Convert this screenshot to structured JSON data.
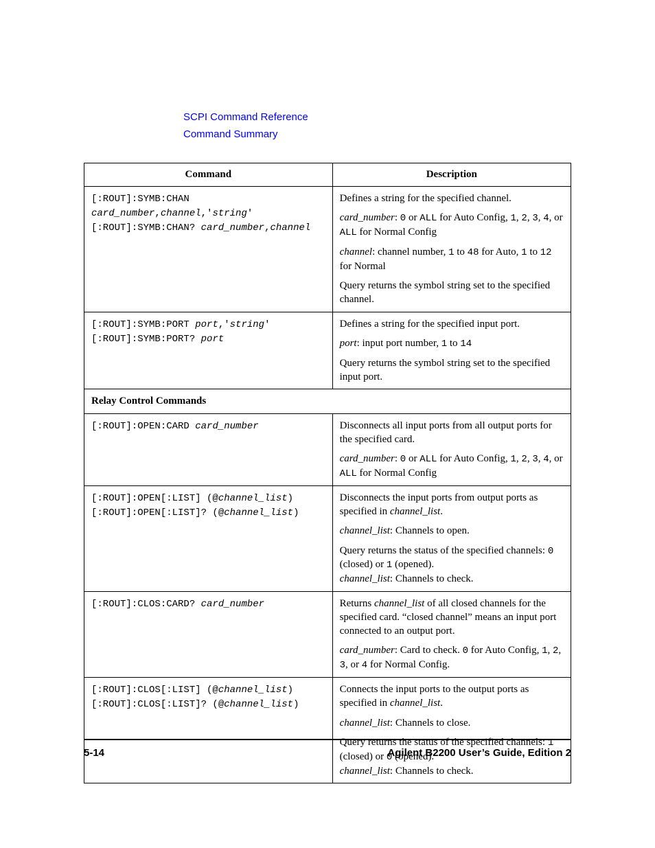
{
  "header": {
    "line1": "SCPI Command Reference",
    "line2": "Command Summary",
    "link_color": "#0000ff"
  },
  "table": {
    "col_command": "Command",
    "col_description": "Description",
    "rows": [
      {
        "type": "row",
        "command": [
          {
            "segments": [
              {
                "t": "[:ROUT]:SYMB:CHAN ",
                "cls": "mono"
              },
              {
                "t": "card_number",
                "cls": "mono ital"
              },
              {
                "t": ",",
                "cls": "mono"
              },
              {
                "t": "channel",
                "cls": "mono ital"
              },
              {
                "t": ",'",
                "cls": "mono"
              },
              {
                "t": "string",
                "cls": "mono ital"
              },
              {
                "t": "'",
                "cls": "mono"
              }
            ]
          },
          {
            "segments": [
              {
                "t": "[:ROUT]:SYMB:CHAN? ",
                "cls": "mono"
              },
              {
                "t": "card_number",
                "cls": "mono ital"
              },
              {
                "t": ",",
                "cls": "mono"
              },
              {
                "t": "channel",
                "cls": "mono ital"
              }
            ]
          }
        ],
        "description": [
          {
            "segments": [
              {
                "t": "Defines a string for the specified channel."
              }
            ]
          },
          {
            "segments": [
              {
                "t": "card_number",
                "cls": "ital"
              },
              {
                "t": ": "
              },
              {
                "t": "0",
                "cls": "mono"
              },
              {
                "t": " or "
              },
              {
                "t": "ALL",
                "cls": "mono"
              },
              {
                "t": " for Auto Config, "
              },
              {
                "t": "1",
                "cls": "mono"
              },
              {
                "t": ", "
              },
              {
                "t": "2",
                "cls": "mono"
              },
              {
                "t": ", "
              },
              {
                "t": "3",
                "cls": "mono"
              },
              {
                "t": ", "
              },
              {
                "t": "4",
                "cls": "mono"
              },
              {
                "t": ", or "
              },
              {
                "t": "ALL",
                "cls": "mono"
              },
              {
                "t": " for Normal Config"
              }
            ]
          },
          {
            "segments": [
              {
                "t": "channel",
                "cls": "ital"
              },
              {
                "t": ": channel number, "
              },
              {
                "t": "1",
                "cls": "mono"
              },
              {
                "t": " to "
              },
              {
                "t": "48",
                "cls": "mono"
              },
              {
                "t": " for Auto, "
              },
              {
                "t": "1",
                "cls": "mono"
              },
              {
                "t": " to "
              },
              {
                "t": "12",
                "cls": "mono"
              },
              {
                "t": " for Normal"
              }
            ]
          },
          {
            "segments": [
              {
                "t": "Query returns the symbol string set to the specified channel."
              }
            ]
          }
        ]
      },
      {
        "type": "row",
        "command": [
          {
            "segments": [
              {
                "t": "[:ROUT]:SYMB:PORT ",
                "cls": "mono"
              },
              {
                "t": "port",
                "cls": "mono ital"
              },
              {
                "t": ",'",
                "cls": "mono"
              },
              {
                "t": "string",
                "cls": "mono ital"
              },
              {
                "t": "'",
                "cls": "mono"
              }
            ]
          },
          {
            "segments": [
              {
                "t": "[:ROUT]:SYMB:PORT? ",
                "cls": "mono"
              },
              {
                "t": "port",
                "cls": "mono ital"
              }
            ]
          }
        ],
        "description": [
          {
            "segments": [
              {
                "t": "Defines a string for the specified input port."
              }
            ]
          },
          {
            "segments": [
              {
                "t": "port",
                "cls": "ital"
              },
              {
                "t": ": input port number, "
              },
              {
                "t": "1",
                "cls": "mono"
              },
              {
                "t": " to "
              },
              {
                "t": "14",
                "cls": "mono"
              }
            ]
          },
          {
            "segments": [
              {
                "t": "Query returns the symbol string set to the specified input port."
              }
            ]
          }
        ]
      },
      {
        "type": "section",
        "label": "Relay Control Commands"
      },
      {
        "type": "row",
        "command": [
          {
            "segments": [
              {
                "t": "[:ROUT]:OPEN:CARD ",
                "cls": "mono"
              },
              {
                "t": "card_number",
                "cls": "mono ital"
              }
            ]
          }
        ],
        "description": [
          {
            "segments": [
              {
                "t": "Disconnects all input ports from all output ports for the specified card."
              }
            ]
          },
          {
            "segments": [
              {
                "t": "card_number",
                "cls": "ital"
              },
              {
                "t": ": "
              },
              {
                "t": "0",
                "cls": "mono"
              },
              {
                "t": " or "
              },
              {
                "t": "ALL",
                "cls": "mono"
              },
              {
                "t": " for Auto Config, "
              },
              {
                "t": "1",
                "cls": "mono"
              },
              {
                "t": ", "
              },
              {
                "t": "2",
                "cls": "mono"
              },
              {
                "t": ", "
              },
              {
                "t": "3",
                "cls": "mono"
              },
              {
                "t": ", "
              },
              {
                "t": "4",
                "cls": "mono"
              },
              {
                "t": ", or "
              },
              {
                "t": "ALL",
                "cls": "mono"
              },
              {
                "t": " for Normal Config"
              }
            ]
          }
        ]
      },
      {
        "type": "row",
        "command": [
          {
            "segments": [
              {
                "t": "[:ROUT]:OPEN[:LIST] (@",
                "cls": "mono"
              },
              {
                "t": "channel_list",
                "cls": "mono ital"
              },
              {
                "t": ")",
                "cls": "mono"
              }
            ]
          },
          {
            "segments": [
              {
                "t": "[:ROUT]:OPEN[:LIST]? (@",
                "cls": "mono"
              },
              {
                "t": "channel_list",
                "cls": "mono ital"
              },
              {
                "t": ")",
                "cls": "mono"
              }
            ]
          }
        ],
        "description": [
          {
            "segments": [
              {
                "t": "Disconnects the input ports from output ports as specified in "
              },
              {
                "t": "channel_list",
                "cls": "ital"
              },
              {
                "t": "."
              }
            ]
          },
          {
            "segments": [
              {
                "t": "channel_list",
                "cls": "ital"
              },
              {
                "t": ": Channels to open."
              }
            ]
          },
          {
            "segments": [
              {
                "t": "Query returns the status of the specified channels: "
              },
              {
                "t": "0",
                "cls": "mono"
              },
              {
                "t": " (closed) or "
              },
              {
                "t": "1",
                "cls": "mono"
              },
              {
                "t": " (opened)."
              }
            ],
            "tight_next": true
          },
          {
            "segments": [
              {
                "t": "channel_list",
                "cls": "ital"
              },
              {
                "t": ": Channels to check."
              }
            ]
          }
        ]
      },
      {
        "type": "row",
        "command": [
          {
            "segments": [
              {
                "t": "[:ROUT]:CLOS:CARD? ",
                "cls": "mono"
              },
              {
                "t": "card_number",
                "cls": "mono ital"
              }
            ]
          }
        ],
        "description": [
          {
            "segments": [
              {
                "t": "Returns "
              },
              {
                "t": "channel_list",
                "cls": "ital"
              },
              {
                "t": " of all closed channels for the specified card. “closed channel” means an input port connected to an output port."
              }
            ]
          },
          {
            "segments": [
              {
                "t": "card_number",
                "cls": "ital"
              },
              {
                "t": ": Card to check. "
              },
              {
                "t": "0",
                "cls": "mono"
              },
              {
                "t": " for Auto Config, "
              },
              {
                "t": "1",
                "cls": "mono"
              },
              {
                "t": ", "
              },
              {
                "t": "2",
                "cls": "mono"
              },
              {
                "t": ", "
              },
              {
                "t": "3",
                "cls": "mono"
              },
              {
                "t": ", or "
              },
              {
                "t": "4",
                "cls": "mono"
              },
              {
                "t": " for Normal Config."
              }
            ]
          }
        ]
      },
      {
        "type": "row",
        "command": [
          {
            "segments": [
              {
                "t": "[:ROUT]:CLOS[:LIST] (@",
                "cls": "mono"
              },
              {
                "t": "channel_list",
                "cls": "mono ital"
              },
              {
                "t": ")",
                "cls": "mono"
              }
            ]
          },
          {
            "segments": [
              {
                "t": "[:ROUT]:CLOS[:LIST]? (@",
                "cls": "mono"
              },
              {
                "t": "channel_list",
                "cls": "mono ital"
              },
              {
                "t": ")",
                "cls": "mono"
              }
            ]
          }
        ],
        "description": [
          {
            "segments": [
              {
                "t": "Connects the input ports to the output ports as specified in "
              },
              {
                "t": "channel_list",
                "cls": "ital"
              },
              {
                "t": "."
              }
            ]
          },
          {
            "segments": [
              {
                "t": "channel_list",
                "cls": "ital"
              },
              {
                "t": ": Channels to close."
              }
            ]
          },
          {
            "segments": [
              {
                "t": "Query returns the status of the specified channels: "
              },
              {
                "t": "1",
                "cls": "mono"
              },
              {
                "t": " (closed) or "
              },
              {
                "t": "0",
                "cls": "mono"
              },
              {
                "t": " (opened)."
              }
            ],
            "tight_next": true
          },
          {
            "segments": [
              {
                "t": "channel_list",
                "cls": "ital"
              },
              {
                "t": ": Channels to check."
              }
            ]
          }
        ]
      }
    ]
  },
  "footer": {
    "page_number": "5-14",
    "guide": "Agilent B2200 User’s Guide, Edition 2"
  }
}
